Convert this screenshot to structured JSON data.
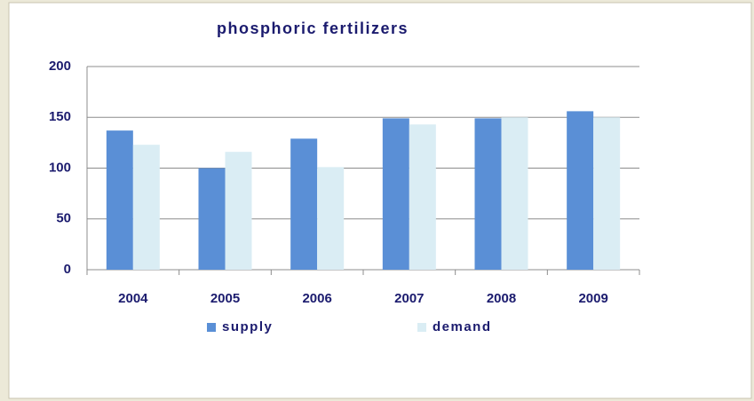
{
  "chart_data": {
    "type": "bar",
    "title": "phosphoric fertilizers",
    "categories": [
      "2004",
      "2005",
      "2006",
      "2007",
      "2008",
      "2009"
    ],
    "series": [
      {
        "name": "supply",
        "color": "#5a8fd6",
        "values": [
          137,
          100,
          129,
          149,
          149,
          156
        ]
      },
      {
        "name": "demand",
        "color": "#daedf4",
        "values": [
          123,
          116,
          101,
          143,
          150,
          150
        ]
      }
    ],
    "ylim": [
      0,
      200
    ],
    "yticks": [
      0,
      50,
      100,
      150,
      200
    ],
    "grid": true
  }
}
